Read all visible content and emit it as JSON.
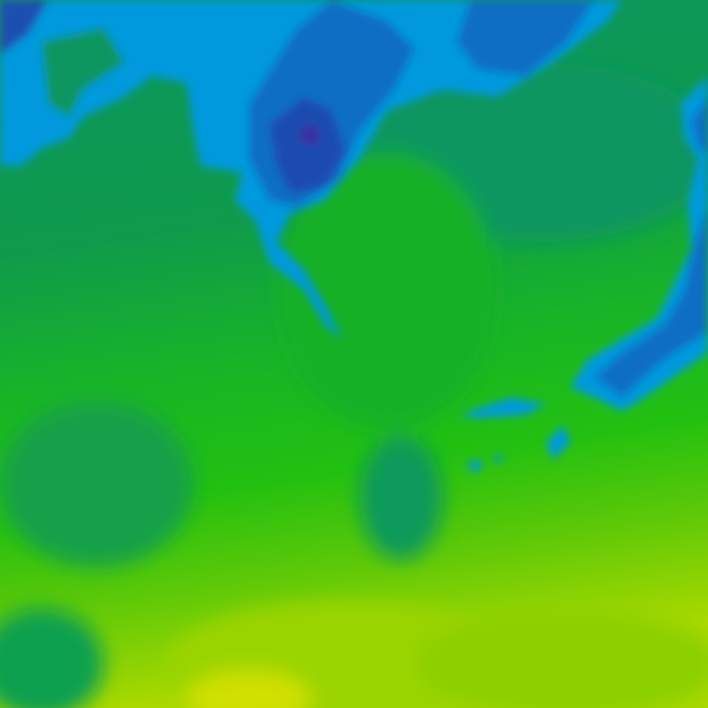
{
  "map": {
    "type": "temperature-contour-tile",
    "palette": {
      "deep_navy": "#2a2f9a",
      "navy": "#1a4fb0",
      "blue": "#0a70c8",
      "light_blue": "#0099dd",
      "teal_green": "#0a9660",
      "green": "#14a83a",
      "bright_green": "#22c010",
      "lime": "#5cc808",
      "yellow_green": "#9ad400",
      "yellow": "#d8e000"
    }
  }
}
